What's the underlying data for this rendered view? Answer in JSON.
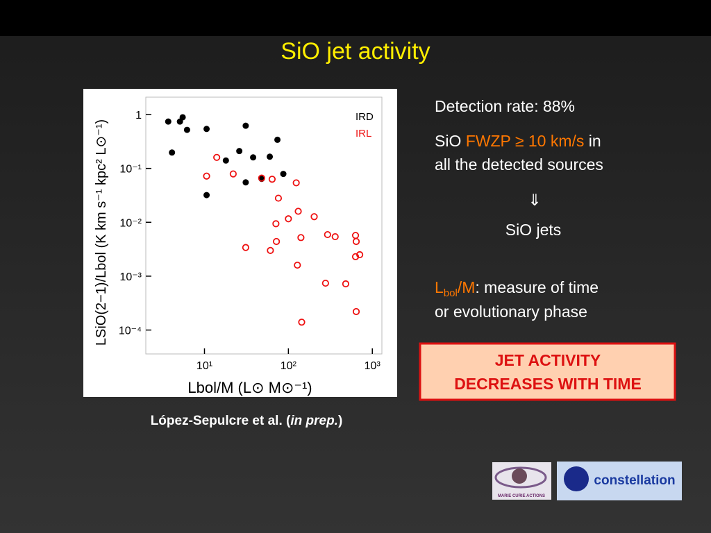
{
  "slide": {
    "title": "SiO jet activity",
    "detection": "Detection rate: 88%",
    "fwzp": {
      "pre": "SiO",
      "highlight": "FWZP ≥ 10 km/s",
      "post1": "in",
      "post2": "all the detected sources"
    },
    "arrow": "⇓",
    "conclusion": "SiO jets",
    "lbol": {
      "L": "L",
      "sub": "bol",
      "M": "/M",
      "rest1": ": measure of time",
      "rest2": "or evolutionary phase"
    },
    "box": [
      "JET ACTIVITY",
      "DECREASES WITH TIME"
    ],
    "caption": {
      "pre": "López-Sepulcre et al. (",
      "italic": "in prep.",
      "post": ")"
    },
    "logos": [
      "MARIE CURIE ACTIONS",
      "constellation"
    ]
  },
  "chart_data": {
    "type": "scatter",
    "x_label": "Lbol/M (L⊙ M⊙⁻¹)",
    "y_label": "LSiO(2−1)/Lbol (K km s⁻¹ kpc² L⊙⁻¹)",
    "xscale": "log",
    "yscale": "log",
    "xlim": [
      2,
      1300
    ],
    "ylim": [
      3.6e-05,
      2.1
    ],
    "xticks": [
      {
        "value": 10,
        "label": "10¹"
      },
      {
        "value": 100,
        "label": "10²"
      },
      {
        "value": 1000,
        "label": "10³"
      }
    ],
    "yticks": [
      1,
      {
        "value": 0.1,
        "label": "10⁻¹"
      },
      {
        "value": 0.01,
        "label": "10⁻²"
      },
      {
        "value": 0.001,
        "label": "10⁻³"
      },
      {
        "value": 0.0001,
        "label": "10⁻⁴"
      }
    ],
    "legend": "upper right",
    "series": [
      {
        "name": "IRD",
        "color": "#000000",
        "marker": "filled",
        "x": [
          3.7,
          4.1,
          5.1,
          5.5,
          6.2,
          10.6,
          10.6,
          18,
          26,
          31,
          31,
          38,
          48,
          60,
          74,
          87
        ],
        "values": [
          0.74,
          0.197,
          0.74,
          0.89,
          0.52,
          0.54,
          0.032,
          0.14,
          0.21,
          0.62,
          0.055,
          0.16,
          0.064,
          0.165,
          0.34,
          0.079
        ]
      },
      {
        "name": "IRL",
        "color": "#ee1111",
        "marker": "open",
        "x": [
          14,
          10.6,
          22,
          48,
          64,
          124,
          76,
          131,
          203,
          100,
          71,
          293,
          361,
          141,
          72,
          631,
          643,
          31,
          61,
          708,
          631,
          128,
          277,
          482,
          643,
          144
        ],
        "values": [
          0.16,
          0.072,
          0.079,
          0.066,
          0.063,
          0.054,
          0.028,
          0.016,
          0.0127,
          0.0116,
          0.0094,
          0.0059,
          0.0054,
          0.0052,
          0.0044,
          0.0057,
          0.0044,
          0.0034,
          0.003,
          0.0025,
          0.0023,
          0.0016,
          0.00074,
          0.00072,
          0.00022,
          0.00014
        ]
      }
    ]
  }
}
